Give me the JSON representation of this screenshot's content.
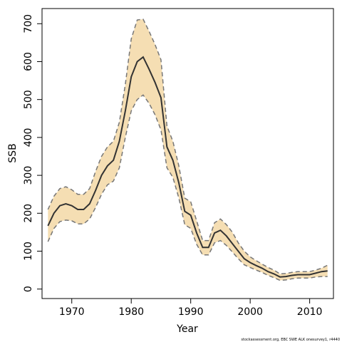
{
  "chart_data": {
    "type": "area",
    "xlabel": "Year",
    "ylabel": "SSB",
    "credit": "stockassessment.org, EBC SWE ALK onesurvey1, r4440",
    "xlim": [
      1965,
      2014
    ],
    "ylim": [
      -25,
      740
    ],
    "x_ticks": [
      1970,
      1980,
      1990,
      2000,
      2010
    ],
    "y_ticks": [
      0,
      100,
      200,
      300,
      400,
      500,
      600,
      700
    ],
    "grid": false,
    "colors": {
      "band": "#f5deb3",
      "estimate": "#333333",
      "ci_line": "#777777"
    },
    "x": [
      1966,
      1967,
      1968,
      1969,
      1970,
      1971,
      1972,
      1973,
      1974,
      1975,
      1976,
      1977,
      1978,
      1979,
      1980,
      1981,
      1982,
      1983,
      1984,
      1985,
      1986,
      1987,
      1988,
      1989,
      1990,
      1991,
      1992,
      1993,
      1994,
      1995,
      1996,
      1997,
      1998,
      1999,
      2000,
      2001,
      2002,
      2003,
      2004,
      2005,
      2006,
      2007,
      2008,
      2009,
      2010,
      2011,
      2012,
      2013
    ],
    "series": [
      {
        "role": "estimate",
        "values": [
          167,
          200,
          220,
          225,
          220,
          210,
          210,
          225,
          260,
          300,
          325,
          340,
          390,
          470,
          560,
          600,
          612,
          580,
          545,
          505,
          375,
          340,
          280,
          205,
          195,
          148,
          110,
          110,
          148,
          155,
          140,
          120,
          100,
          80,
          70,
          62,
          55,
          46,
          40,
          32,
          33,
          36,
          38,
          38,
          38,
          42,
          46,
          48
        ]
      },
      {
        "role": "upper",
        "values": [
          210,
          245,
          265,
          270,
          262,
          250,
          250,
          265,
          310,
          350,
          375,
          390,
          440,
          540,
          660,
          710,
          712,
          680,
          645,
          605,
          430,
          390,
          325,
          240,
          230,
          180,
          128,
          128,
          175,
          185,
          170,
          150,
          122,
          100,
          85,
          75,
          66,
          57,
          50,
          40,
          41,
          44,
          46,
          46,
          46,
          50,
          55,
          63
        ]
      },
      {
        "role": "lower",
        "values": [
          125,
          160,
          178,
          182,
          180,
          172,
          172,
          185,
          215,
          250,
          275,
          285,
          320,
          400,
          470,
          500,
          512,
          490,
          460,
          420,
          320,
          295,
          240,
          170,
          160,
          118,
          90,
          90,
          122,
          128,
          115,
          98,
          80,
          64,
          57,
          50,
          44,
          36,
          30,
          23,
          24,
          27,
          29,
          29,
          29,
          32,
          33,
          33
        ]
      }
    ]
  }
}
